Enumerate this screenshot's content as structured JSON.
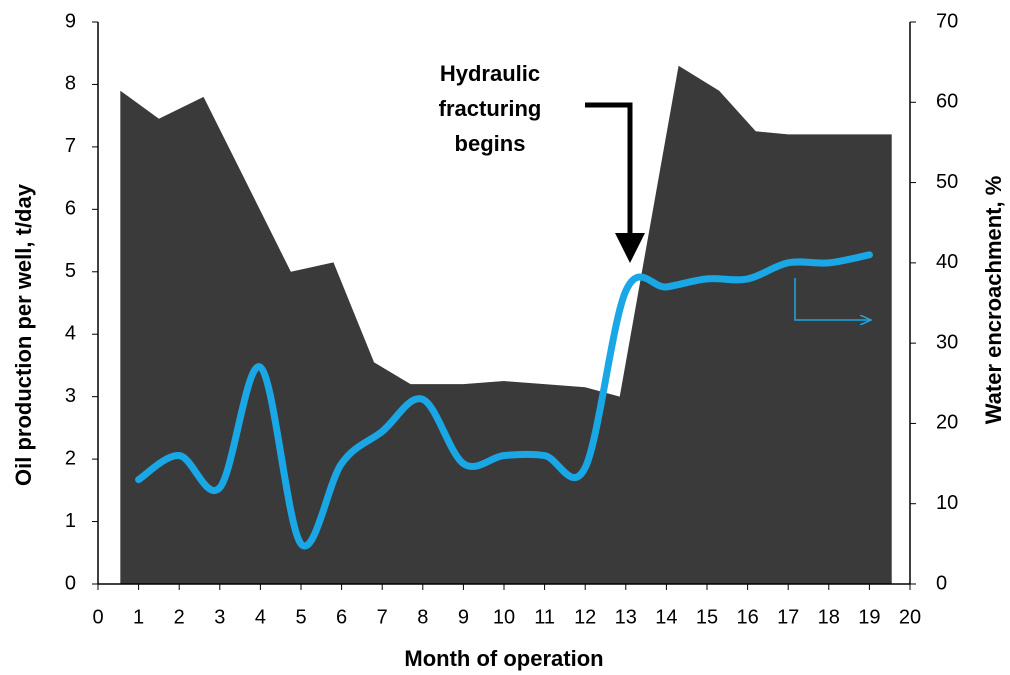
{
  "chart_data": {
    "type": "combo",
    "xlabel": "Month of operation",
    "ylabel": "Oil production per well, t/day",
    "y2label": "Water encroachment, %",
    "annotation": [
      "Hydraulic",
      "fracturing",
      "begins"
    ],
    "xlim": [
      0,
      20
    ],
    "xticks": [
      0,
      1,
      2,
      3,
      4,
      5,
      6,
      7,
      8,
      9,
      10,
      11,
      12,
      13,
      14,
      15,
      16,
      17,
      18,
      19,
      20
    ],
    "ylim": [
      0,
      9
    ],
    "yticks": [
      0,
      1,
      2,
      3,
      4,
      5,
      6,
      7,
      8,
      9
    ],
    "y2lim": [
      0,
      70
    ],
    "y2ticks": [
      0,
      10,
      20,
      30,
      40,
      50,
      60,
      70
    ],
    "grid": false,
    "series": [
      {
        "type": "area",
        "color": "#3a3a3a",
        "axis": "y",
        "x": [
          0.55,
          1.5,
          2.6,
          3.6,
          4.75,
          5.8,
          6.8,
          7.7,
          9,
          10,
          11,
          12,
          12.85,
          14.3,
          15.3,
          16.2,
          17,
          19.55
        ],
        "values": [
          7.9,
          7.45,
          7.8,
          6.5,
          5.0,
          5.15,
          3.55,
          3.2,
          3.2,
          3.25,
          3.2,
          3.15,
          3.0,
          8.3,
          7.9,
          7.25,
          7.2,
          7.2
        ]
      },
      {
        "type": "line",
        "color": "#1aa7e6",
        "axis": "y2",
        "x": [
          1,
          2,
          3,
          4,
          5,
          6,
          7,
          8,
          9,
          10,
          11,
          12,
          13,
          14,
          15,
          16,
          17,
          18,
          19
        ],
        "values": [
          13,
          16,
          12,
          27,
          5,
          15,
          19,
          23,
          15,
          16,
          16,
          14.5,
          36.5,
          37,
          38,
          38,
          40,
          40,
          41
        ]
      }
    ]
  }
}
